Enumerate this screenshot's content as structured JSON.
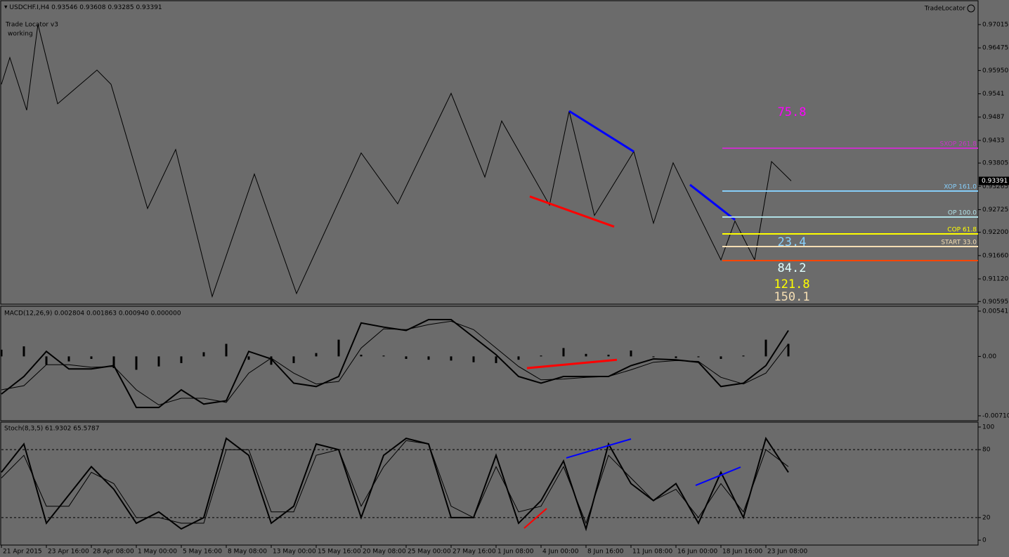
{
  "header": {
    "symbol": "USDCHF.I,H4",
    "open": "0.93546",
    "high": "0.93608",
    "low": "0.93285",
    "close": "0.93391"
  },
  "indicator": {
    "name": "Trade Locator v3",
    "status": "working",
    "badge": "TradeLocator"
  },
  "main": {
    "ylim": [
      0.90534,
      0.97552
    ],
    "yticks": [
      0.97015,
      0.96475,
      {
        "value": 0.9595,
        "label": "0.95950"
      },
      0.9541,
      0.9487,
      0.9433,
      0.93805,
      0.93265,
      0.92725,
      {
        "value": 0.922,
        "label": "0.92200"
      },
      {
        "value": 0.9166,
        "label": "0.91660"
      },
      {
        "value": 0.9112,
        "label": "0.91120"
      },
      0.90595
    ],
    "zigzag": {
      "x": [
        0,
        3,
        9,
        13,
        20,
        34,
        39,
        52,
        62,
        75,
        90,
        105,
        128,
        141,
        160,
        172,
        178,
        195,
        202,
        211,
        225,
        232,
        239,
        256,
        261,
        268,
        274,
        281
      ],
      "values": [
        0.9563,
        0.9625,
        0.9503,
        0.9702,
        0.9518,
        0.9596,
        0.9563,
        0.9275,
        0.9412,
        0.9071,
        0.9355,
        0.9078,
        0.9404,
        0.9286,
        0.9542,
        0.9348,
        0.9478,
        0.9283,
        0.9501,
        0.9259,
        0.9407,
        0.9241,
        0.9381,
        0.9156,
        0.9246,
        0.9156,
        0.9384,
        0.93391
      ]
    },
    "divergences": [
      {
        "color": "#0000ff",
        "x": [
          202,
          225
        ],
        "values": [
          0.9501,
          0.9407
        ]
      },
      {
        "color": "#ff0000",
        "x": [
          188,
          218
        ],
        "values": [
          0.9303,
          0.9233
        ]
      },
      {
        "color": "#0000ff",
        "x": [
          245,
          261
        ],
        "values": [
          0.933,
          0.9249
        ]
      }
    ],
    "levels": [
      {
        "label": "SXOP 261.8",
        "value": 0.94149,
        "color": "#c832c8"
      },
      {
        "label": "XOP 161.0",
        "value": 0.93156,
        "color": "#87cefa"
      },
      {
        "label": "OP 100.0",
        "value": 0.92553,
        "color": "#b0e0e6"
      },
      {
        "label": "COP 61.8",
        "value": 0.92162,
        "color": "#ffff00"
      },
      {
        "label": "START 33.0",
        "value": 0.91869,
        "color": "#f5deb3"
      },
      {
        "value": 0.91544,
        "color": "#ff4500"
      }
    ],
    "projections": [
      {
        "text": "75.8",
        "color": "#ff00ff"
      },
      {
        "text": "23.4",
        "color": "#87cefa"
      },
      {
        "text": "84.2",
        "color": "#e0ffff"
      },
      {
        "text": "121.8",
        "color": "#ffff00"
      },
      {
        "text": "150.1",
        "color": "#f5deb3"
      }
    ]
  },
  "macd": {
    "title": "MACD(12,26,9) 0.002804 0.001863 0.000940 0.000000",
    "ylim": [
      -0.00769,
      0.00591
    ],
    "yticks": [
      0.00541,
      {
        "value": 0,
        "label": "0.00"
      },
      {
        "value": -0.0071,
        "label": "-0.00710"
      }
    ],
    "x": [
      0,
      8,
      16,
      24,
      32,
      40,
      48,
      56,
      64,
      72,
      80,
      88,
      96,
      104,
      112,
      120,
      128,
      136,
      144,
      152,
      160,
      168,
      176,
      184,
      192,
      200,
      208,
      216,
      224,
      232,
      240,
      248,
      256,
      264,
      272,
      280
    ],
    "main": [
      -0.0045,
      -0.0024,
      0.0006,
      -0.0015,
      -0.0015,
      -0.0011,
      -0.0061,
      -0.0061,
      -0.004,
      -0.0057,
      -0.0053,
      0.0006,
      -0.0003,
      -0.0032,
      -0.0036,
      -0.0024,
      0.004,
      0.0035,
      0.0031,
      0.0044,
      0.0044,
      0.0023,
      0.0002,
      -0.0024,
      -0.0032,
      -0.0024,
      -0.0024,
      -0.0024,
      -0.0011,
      -0.0003,
      -0.0004,
      -0.0007,
      -0.0036,
      -0.0032,
      -0.0011,
      0.0031
    ],
    "signal": [
      -0.004,
      -0.0035,
      -0.001,
      -0.001,
      -0.0013,
      -0.0012,
      -0.004,
      -0.0058,
      -0.005,
      -0.005,
      -0.0055,
      -0.002,
      -0.0002,
      -0.002,
      -0.0033,
      -0.003,
      0.001,
      0.0033,
      0.0032,
      0.0038,
      0.0042,
      0.0032,
      0.001,
      -0.0012,
      -0.0028,
      -0.0027,
      -0.0025,
      -0.0024,
      -0.0016,
      -0.0007,
      -0.0005,
      -0.0006,
      -0.0025,
      -0.0033,
      -0.002,
      0.0015
    ],
    "histogram": [
      0.0008,
      0.0012,
      -0.001,
      -0.0006,
      -0.0003,
      -0.0014,
      -0.0016,
      -0.0012,
      -0.0008,
      0.0005,
      0.0015,
      -0.0004,
      -0.001,
      -0.0008,
      0.0004,
      0.002,
      0.0002,
      0.0001,
      -0.0003,
      -0.0004,
      -0.0005,
      -0.0007,
      -0.0008,
      -0.0004,
      0.0001,
      0.001,
      0.0003,
      0.0002,
      0.0007,
      -0.0001,
      -0.0002,
      -0.0001,
      -0.0003,
      0.0001,
      0.002,
      0.0015
    ],
    "divergence": {
      "color": "#ff0000",
      "x": [
        187,
        219
      ],
      "values": [
        -0.0014,
        -0.0004
      ]
    }
  },
  "stoch": {
    "title": "Stoch(8,3,5) 61.9302 65.5787",
    "ylim": [
      -4.3,
      103.7
    ],
    "yticks": [
      100,
      80,
      20,
      0
    ],
    "dashed": [
      80,
      20
    ],
    "main": [
      60,
      85,
      15,
      40,
      65,
      45,
      15,
      25,
      10,
      20,
      90,
      75,
      15,
      30,
      85,
      80,
      20,
      75,
      90,
      85,
      20,
      20,
      75,
      15,
      35,
      70,
      10,
      85,
      50,
      35,
      50,
      15,
      60,
      20,
      90,
      60
    ],
    "signal": [
      55,
      75,
      30,
      30,
      60,
      50,
      20,
      20,
      15,
      15,
      80,
      80,
      25,
      25,
      75,
      80,
      30,
      65,
      88,
      85,
      30,
      20,
      65,
      25,
      30,
      65,
      15,
      75,
      55,
      35,
      45,
      20,
      50,
      25,
      80,
      65
    ],
    "divergences": [
      {
        "color": "#0000ff",
        "x": [
          201,
          224
        ],
        "values": [
          72.7,
          89.4
        ]
      },
      {
        "color": "#0000ff",
        "x": [
          247,
          263
        ],
        "values": [
          48.4,
          64.6
        ]
      },
      {
        "color": "#ff0000",
        "x": [
          186,
          194
        ],
        "values": [
          10.6,
          28
        ]
      }
    ]
  },
  "dates": [
    "21 Apr 2015",
    "23 Apr 16:00",
    "28 Apr 08:00",
    "1 May 00:00",
    "5 May 16:00",
    "8 May 08:00",
    "13 May 00:00",
    "15 May 16:00",
    "20 May 08:00",
    "25 May 00:00",
    "27 May 16:00",
    "1 Jun 08:00",
    "4 Jun 00:00",
    "8 Jun 16:00",
    "11 Jun 08:00",
    "16 Jun 00:00",
    "18 Jun 16:00",
    "23 Jun 08:00"
  ]
}
